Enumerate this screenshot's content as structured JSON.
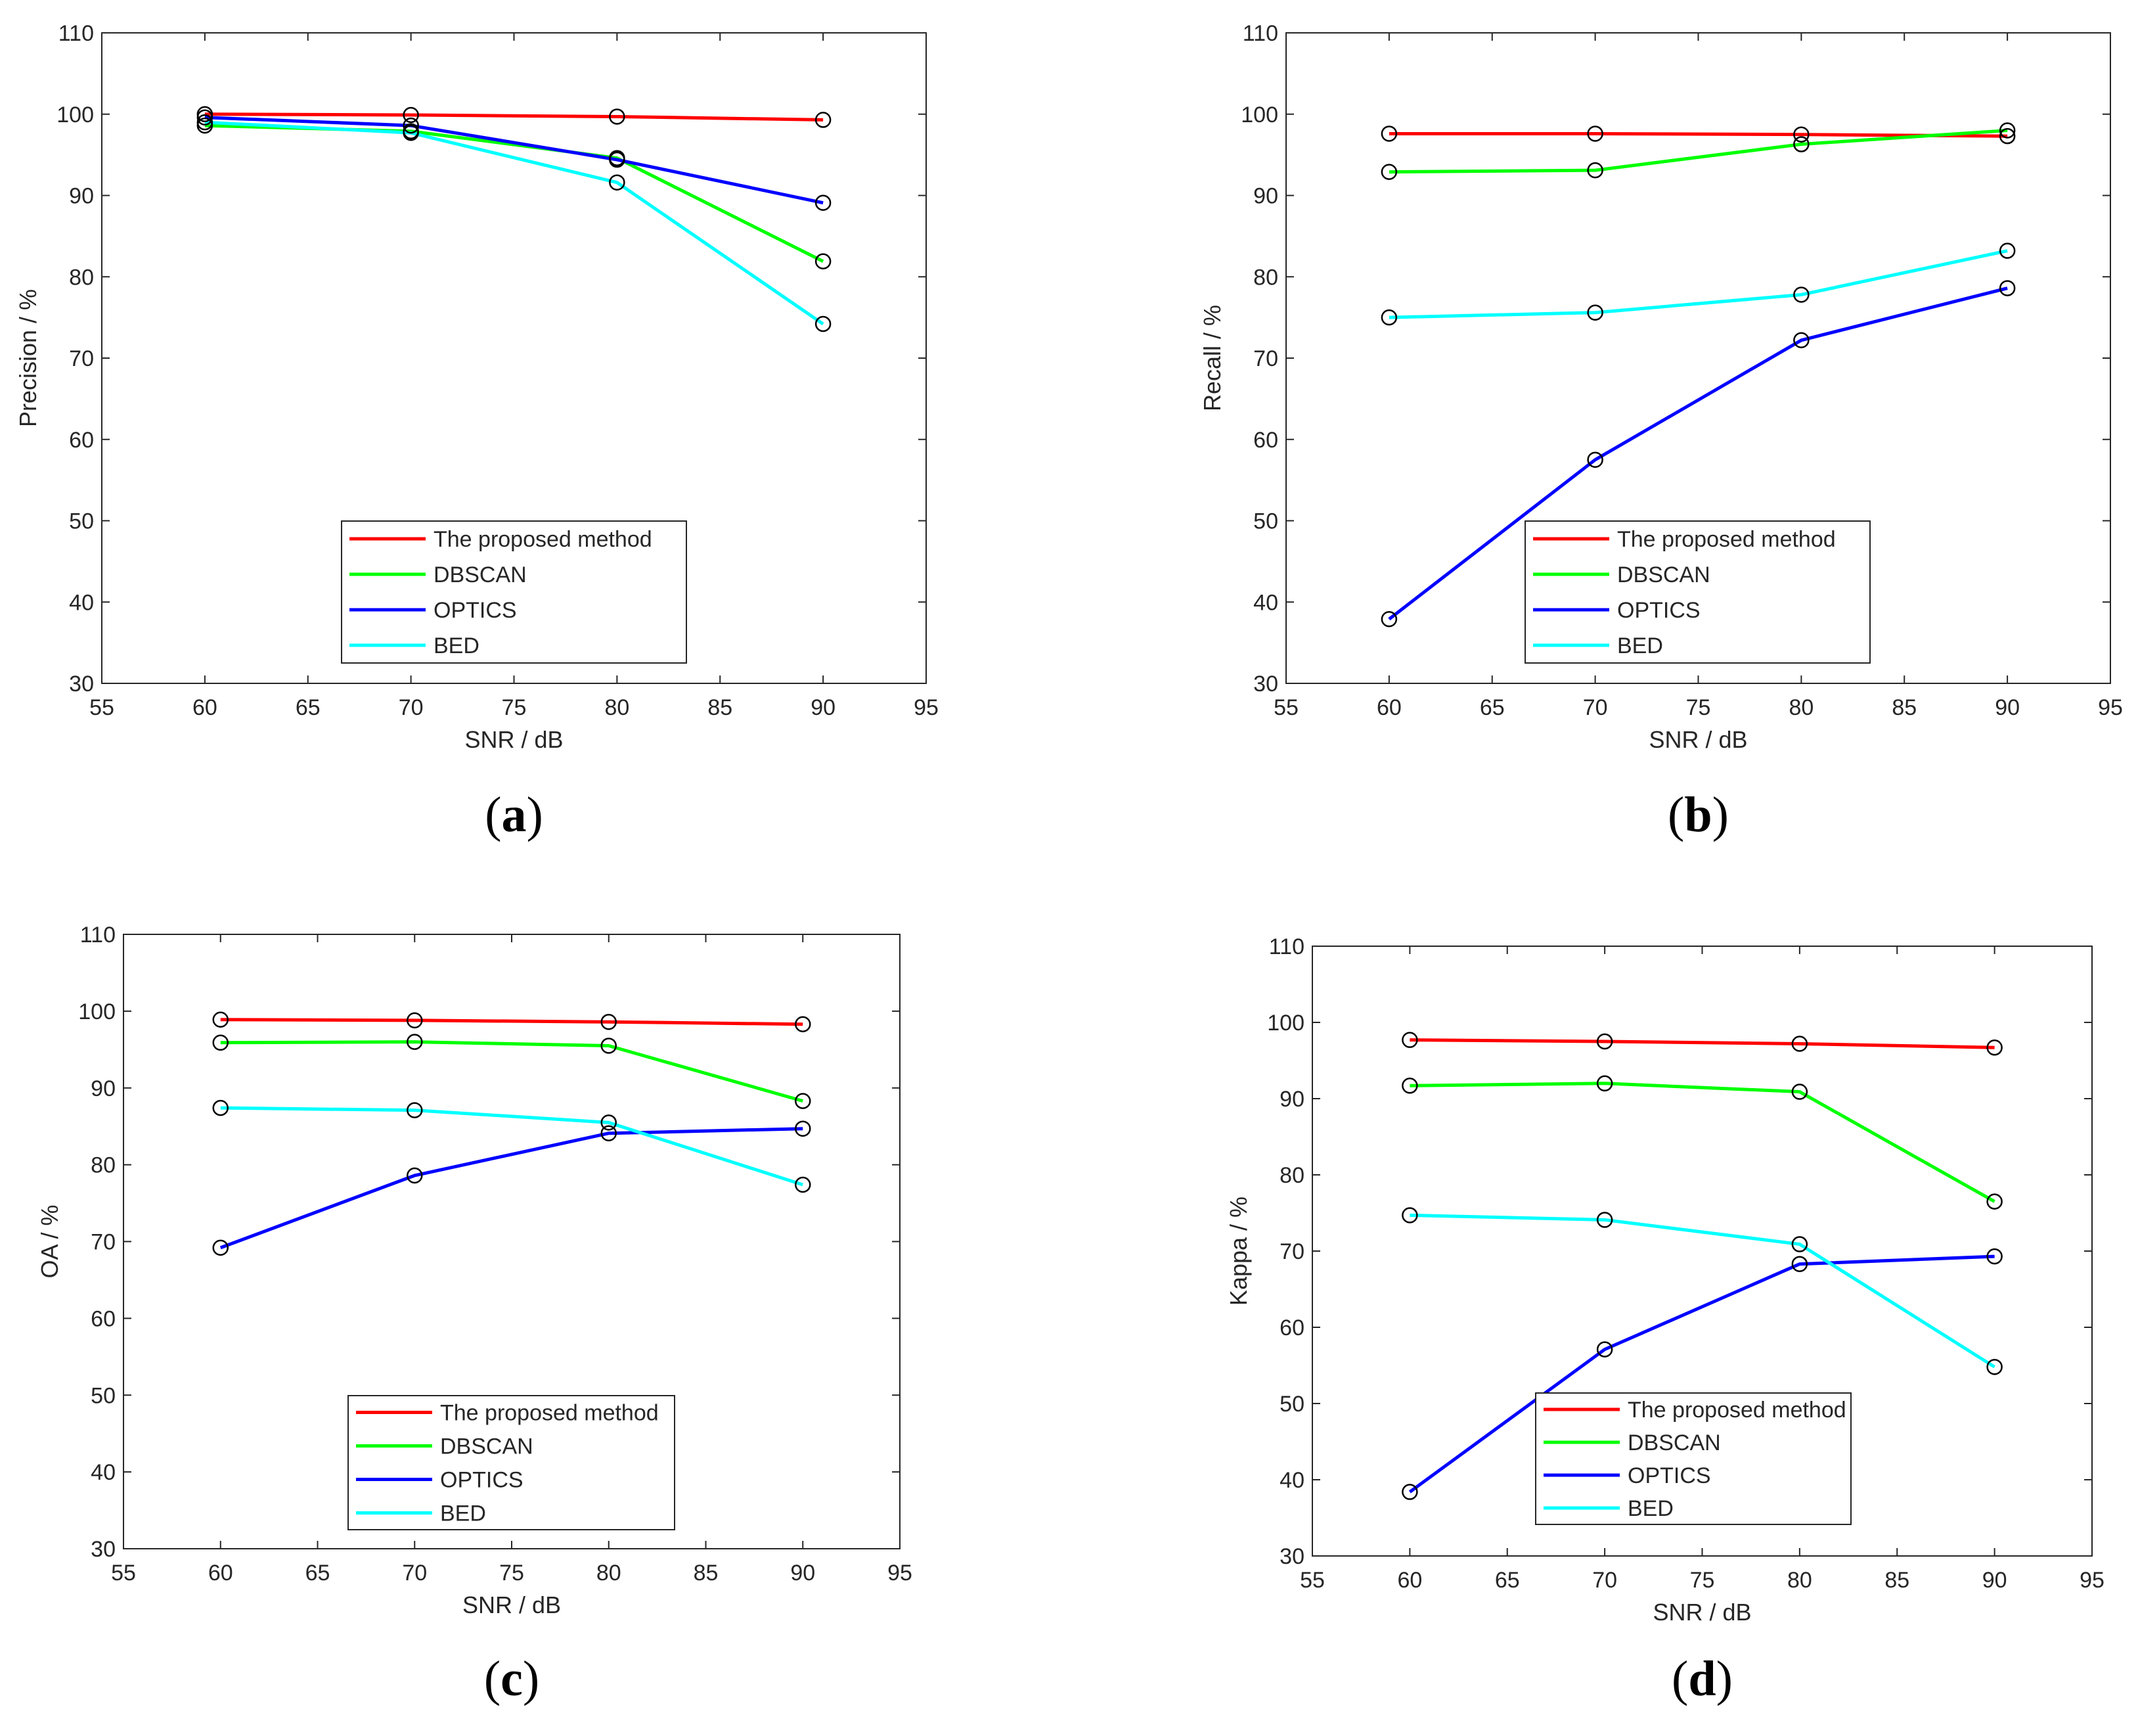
{
  "colors": {
    "proposed": "#ff0000",
    "dbscan": "#00ff00",
    "optics": "#0000ff",
    "bed": "#00ffff",
    "axis": "#262626",
    "marker": "#000000"
  },
  "chart_data": [
    {
      "type": "line",
      "panel_label": "a",
      "xlabel": "SNR / dB",
      "ylabel": "Precision / %",
      "xlim": [
        55,
        95
      ],
      "ylim": [
        30,
        110
      ],
      "xticks": [
        55,
        60,
        65,
        70,
        75,
        80,
        85,
        90,
        95
      ],
      "yticks": [
        30,
        40,
        50,
        60,
        70,
        80,
        90,
        100,
        110
      ],
      "legend_position": "bottom-center",
      "categories": [
        60,
        70,
        80,
        90
      ],
      "series": [
        {
          "name": "The proposed method",
          "key": "proposed",
          "values": [
            100.0,
            99.9,
            99.7,
            99.3
          ]
        },
        {
          "name": "DBSCAN",
          "key": "dbscan",
          "values": [
            98.6,
            97.9,
            94.6,
            81.9
          ]
        },
        {
          "name": "OPTICS",
          "key": "optics",
          "values": [
            99.6,
            98.6,
            94.4,
            89.1
          ]
        },
        {
          "name": "BED",
          "key": "bed",
          "values": [
            99.0,
            97.7,
            91.6,
            74.2
          ]
        }
      ]
    },
    {
      "type": "line",
      "panel_label": "b",
      "xlabel": "SNR / dB",
      "ylabel": "Recall / %",
      "xlim": [
        55,
        95
      ],
      "ylim": [
        30,
        110
      ],
      "xticks": [
        55,
        60,
        65,
        70,
        75,
        80,
        85,
        90,
        95
      ],
      "yticks": [
        30,
        40,
        50,
        60,
        70,
        80,
        90,
        100,
        110
      ],
      "legend_position": "bottom-center",
      "categories": [
        60,
        70,
        80,
        90
      ],
      "series": [
        {
          "name": "The proposed method",
          "key": "proposed",
          "values": [
            97.6,
            97.6,
            97.5,
            97.3
          ]
        },
        {
          "name": "DBSCAN",
          "key": "dbscan",
          "values": [
            92.9,
            93.1,
            96.3,
            98.0
          ]
        },
        {
          "name": "OPTICS",
          "key": "optics",
          "values": [
            37.9,
            57.5,
            72.2,
            78.6
          ]
        },
        {
          "name": "BED",
          "key": "bed",
          "values": [
            75.0,
            75.6,
            77.8,
            83.2
          ]
        }
      ]
    },
    {
      "type": "line",
      "panel_label": "c",
      "xlabel": "SNR / dB",
      "ylabel": "OA / %",
      "xlim": [
        55,
        95
      ],
      "ylim": [
        30,
        110
      ],
      "xticks": [
        55,
        60,
        65,
        70,
        75,
        80,
        85,
        90,
        95
      ],
      "yticks": [
        30,
        40,
        50,
        60,
        70,
        80,
        90,
        100,
        110
      ],
      "legend_position": "bottom-center",
      "categories": [
        60,
        70,
        80,
        90
      ],
      "series": [
        {
          "name": "The proposed method",
          "key": "proposed",
          "values": [
            98.9,
            98.8,
            98.6,
            98.3
          ]
        },
        {
          "name": "DBSCAN",
          "key": "dbscan",
          "values": [
            95.9,
            96.0,
            95.5,
            88.3
          ]
        },
        {
          "name": "OPTICS",
          "key": "optics",
          "values": [
            69.2,
            78.6,
            84.1,
            84.7
          ]
        },
        {
          "name": "BED",
          "key": "bed",
          "values": [
            87.4,
            87.1,
            85.5,
            77.4
          ]
        }
      ]
    },
    {
      "type": "line",
      "panel_label": "d",
      "xlabel": "SNR / dB",
      "ylabel": "Kappa / %",
      "xlim": [
        55,
        95
      ],
      "ylim": [
        30,
        110
      ],
      "xticks": [
        55,
        60,
        65,
        70,
        75,
        80,
        85,
        90,
        95
      ],
      "yticks": [
        30,
        40,
        50,
        60,
        70,
        80,
        90,
        100,
        110
      ],
      "legend_position": "bottom-center",
      "categories": [
        60,
        70,
        80,
        90
      ],
      "series": [
        {
          "name": "The proposed method",
          "key": "proposed",
          "values": [
            97.7,
            97.5,
            97.2,
            96.7
          ]
        },
        {
          "name": "DBSCAN",
          "key": "dbscan",
          "values": [
            91.7,
            92.0,
            90.9,
            76.5
          ]
        },
        {
          "name": "OPTICS",
          "key": "optics",
          "values": [
            38.4,
            57.1,
            68.3,
            69.3
          ]
        },
        {
          "name": "BED",
          "key": "bed",
          "values": [
            74.7,
            74.1,
            70.9,
            54.8
          ]
        }
      ]
    }
  ]
}
